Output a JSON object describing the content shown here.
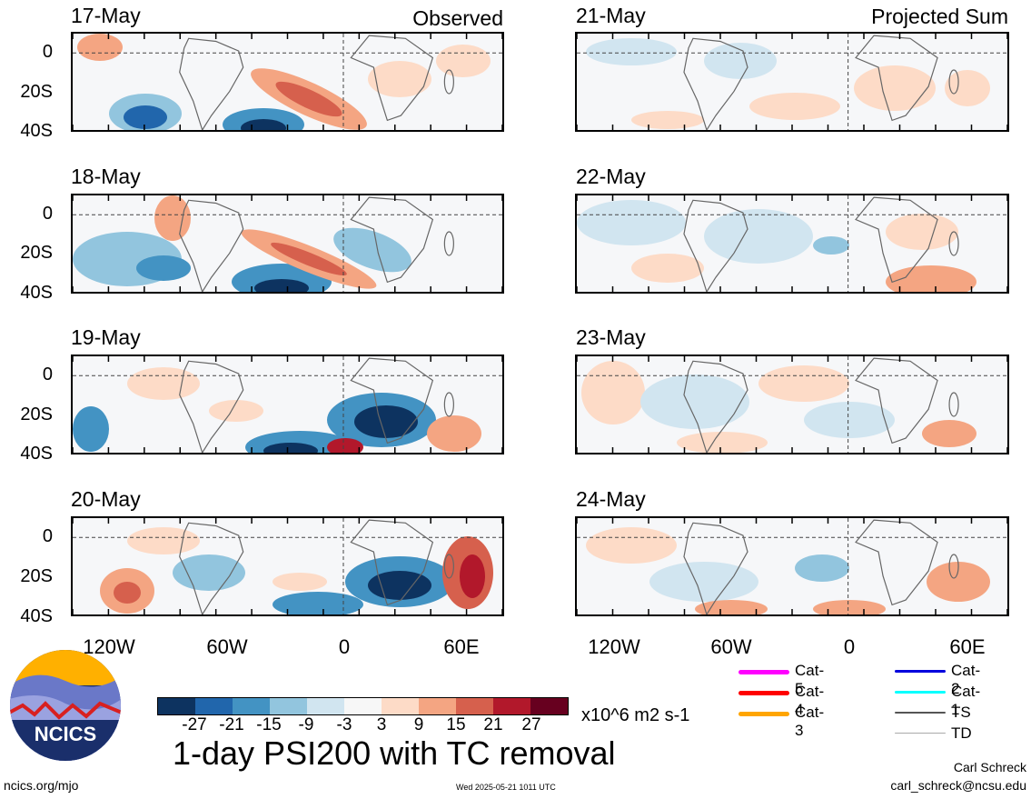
{
  "observed_label": "Observed",
  "projected_label": "Projected Sum",
  "panels_left": [
    {
      "date": "17-May"
    },
    {
      "date": "18-May"
    },
    {
      "date": "19-May"
    },
    {
      "date": "20-May"
    }
  ],
  "panels_right": [
    {
      "date": "21-May"
    },
    {
      "date": "22-May"
    },
    {
      "date": "23-May"
    },
    {
      "date": "24-May"
    }
  ],
  "lat_labels": [
    "0",
    "20S",
    "40S"
  ],
  "lon_labels": [
    "120W",
    "60W",
    "0",
    "60E"
  ],
  "colorbar": {
    "colors": [
      "#0d3360",
      "#2166ac",
      "#4393c3",
      "#92c5de",
      "#d1e5f0",
      "#f7f7f7",
      "#fddbc7",
      "#f4a582",
      "#d6604d",
      "#b2182b",
      "#67001f"
    ],
    "ticks": [
      "-27",
      "-21",
      "-15",
      "-9",
      "-3",
      "3",
      "9",
      "15",
      "21",
      "27"
    ],
    "unit": "x10^6 m2 s-1"
  },
  "title": "1-day PSI200 with TC removal",
  "logo_text": "NCICS",
  "website": "ncics.org/mjo",
  "timestamp": "Wed 2025-05-21 1011 UTC",
  "author": "Carl Schreck",
  "email": "carl_schreck@ncsu.edu",
  "tc_legend": [
    {
      "label": "Cat-5",
      "color": "#ff00ff"
    },
    {
      "label": "Cat-4",
      "color": "#ff0000"
    },
    {
      "label": "Cat-3",
      "color": "#ffa500"
    },
    {
      "label": "Cat-2",
      "color": "#0000dd"
    },
    {
      "label": "Cat-1",
      "color": "#00ffff"
    },
    {
      "label": "TS",
      "color": "#555555"
    },
    {
      "label": "TD",
      "color": "#aaaaaa"
    }
  ]
}
